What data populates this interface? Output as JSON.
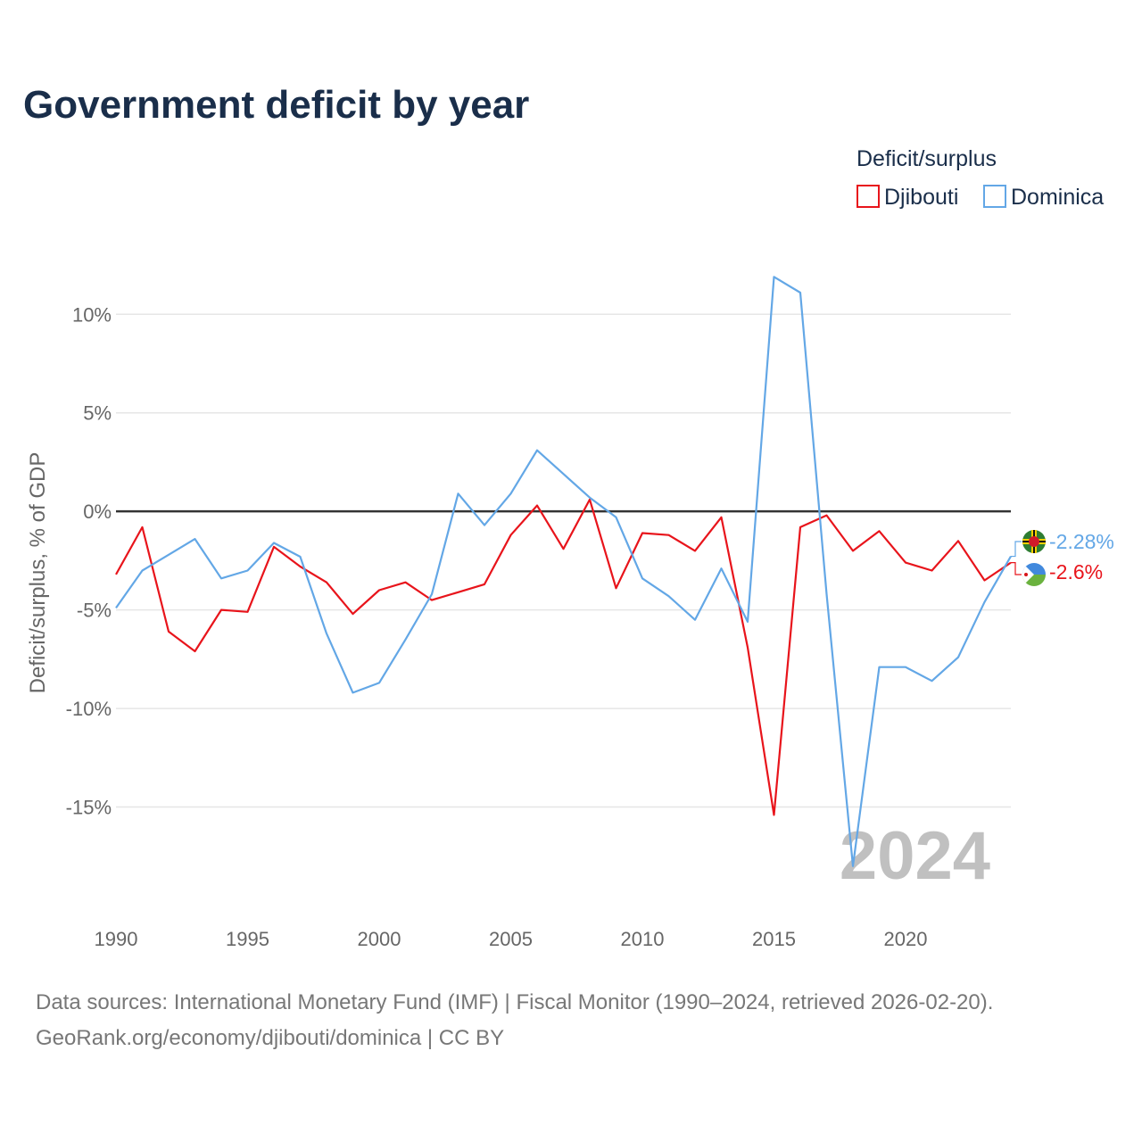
{
  "title": "Government deficit by year",
  "legend": {
    "title": "Deficit/surplus",
    "items": [
      {
        "name": "Djibouti",
        "color": "#e8141b"
      },
      {
        "name": "Dominica",
        "color": "#63a7e6"
      }
    ]
  },
  "year_watermark": "2024",
  "source_line1": "Data sources: International Monetary Fund (IMF) | Fiscal Monitor (1990–2024, retrieved 2026-02-20).",
  "source_line2": "GeoRank.org/economy/djibouti/dominica | CC BY",
  "chart_data": {
    "type": "line",
    "title": "Government deficit by year",
    "xlabel": "",
    "ylabel": "Deficit/surplus, % of GDP",
    "xlim": [
      1990,
      2024
    ],
    "ylim": [
      -20,
      13
    ],
    "x_ticks": [
      1990,
      1995,
      2000,
      2005,
      2010,
      2015,
      2020
    ],
    "x_tick_labels": [
      "1990",
      "1995",
      "2000",
      "2005",
      "2010",
      "2015",
      "2020"
    ],
    "y_ticks": [
      10,
      5,
      0,
      -5,
      -10,
      -15
    ],
    "y_tick_labels": [
      "10%",
      "5%",
      "0%",
      "-5%",
      "-10%",
      "-15%"
    ],
    "x": [
      1990,
      1991,
      1992,
      1993,
      1994,
      1995,
      1996,
      1997,
      1998,
      1999,
      2000,
      2001,
      2002,
      2003,
      2004,
      2005,
      2006,
      2007,
      2008,
      2009,
      2010,
      2011,
      2012,
      2013,
      2014,
      2015,
      2016,
      2017,
      2018,
      2019,
      2020,
      2021,
      2022,
      2023,
      2024
    ],
    "series": [
      {
        "name": "Djibouti",
        "color": "#e8141b",
        "end_label": "-2.6%",
        "values": [
          -3.2,
          -0.8,
          -6.1,
          -7.1,
          -5.0,
          -5.1,
          -1.8,
          -2.8,
          -3.6,
          -5.2,
          -4.0,
          -3.6,
          -4.5,
          -4.1,
          -3.7,
          -1.2,
          0.3,
          -1.9,
          0.6,
          -3.9,
          -1.1,
          -1.2,
          -2.0,
          -0.3,
          -6.9,
          -15.4,
          -0.8,
          -0.2,
          -2.0,
          -1.0,
          -2.6,
          -3.0,
          -1.5,
          -3.5,
          -2.6
        ]
      },
      {
        "name": "Dominica",
        "color": "#63a7e6",
        "end_label": "-2.28%",
        "values": [
          -4.9,
          -3.0,
          -2.2,
          -1.4,
          -3.4,
          -3.0,
          -1.6,
          -2.3,
          -6.2,
          -9.2,
          -8.7,
          -6.5,
          -4.2,
          0.9,
          -0.7,
          0.9,
          3.1,
          1.9,
          0.7,
          -0.3,
          -3.4,
          -4.3,
          -5.5,
          -2.9,
          -5.6,
          11.9,
          11.1,
          -4.2,
          -18.0,
          -7.9,
          -7.9,
          -8.6,
          -7.4,
          -4.6,
          -2.28
        ]
      }
    ],
    "legend_position": "top-right"
  }
}
